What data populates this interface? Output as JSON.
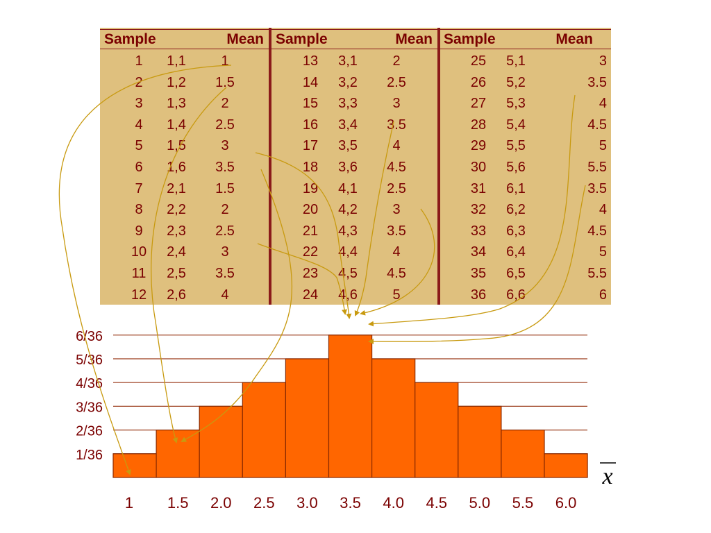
{
  "table": {
    "headers": [
      {
        "sample": "Sample",
        "mean": "Mean"
      },
      {
        "sample": "Sample",
        "mean": "Mean"
      },
      {
        "sample": "Sample",
        "mean": "Mean"
      }
    ],
    "panels": [
      [
        [
          "1",
          "1,1",
          "1"
        ],
        [
          "2",
          "1,2",
          "1.5"
        ],
        [
          "3",
          "1,3",
          "2"
        ],
        [
          "4",
          "1,4",
          "2.5"
        ],
        [
          "5",
          "1,5",
          "3"
        ],
        [
          "6",
          "1,6",
          "3.5"
        ],
        [
          "7",
          "2,1",
          "1.5"
        ],
        [
          "8",
          "2,2",
          "2"
        ],
        [
          "9",
          "2,3",
          "2.5"
        ],
        [
          "10",
          "2,4",
          "3"
        ],
        [
          "11",
          "2,5",
          "3.5"
        ],
        [
          "12",
          "2,6",
          "4"
        ]
      ],
      [
        [
          "13",
          "3,1",
          "2"
        ],
        [
          "14",
          "3,2",
          "2.5"
        ],
        [
          "15",
          "3,3",
          "3"
        ],
        [
          "16",
          "3,4",
          "3.5"
        ],
        [
          "17",
          "3,5",
          "4"
        ],
        [
          "18",
          "3,6",
          "4.5"
        ],
        [
          "19",
          "4,1",
          "2.5"
        ],
        [
          "20",
          "4,2",
          "3"
        ],
        [
          "21",
          "4,3",
          "3.5"
        ],
        [
          "22",
          "4,4",
          "4"
        ],
        [
          "23",
          "4,5",
          "4.5"
        ],
        [
          "24",
          "4,6",
          "5"
        ]
      ],
      [
        [
          "25",
          "5,1",
          "3"
        ],
        [
          "26",
          "5,2",
          "3.5"
        ],
        [
          "27",
          "5,3",
          "4"
        ],
        [
          "28",
          "5,4",
          "4.5"
        ],
        [
          "29",
          "5,5",
          "5"
        ],
        [
          "30",
          "5,6",
          "5.5"
        ],
        [
          "31",
          "6,1",
          "3.5"
        ],
        [
          "32",
          "6,2",
          "4"
        ],
        [
          "33",
          "6,3",
          "4.5"
        ],
        [
          "34",
          "6,4",
          "5"
        ],
        [
          "35",
          "6,5",
          "5.5"
        ],
        [
          "36",
          "6,6",
          "6"
        ]
      ]
    ]
  },
  "chart_data": {
    "type": "bar",
    "categories": [
      "1",
      "1.5",
      "2.0",
      "2.5",
      "3.0",
      "3.5",
      "4.0",
      "4.5",
      "5.0",
      "5.5",
      "6.0"
    ],
    "values": [
      1,
      2,
      3,
      4,
      5,
      6,
      5,
      4,
      3,
      2,
      1
    ],
    "y_tick_labels": [
      "1/36",
      "2/36",
      "3/36",
      "4/36",
      "5/36",
      "6/36"
    ],
    "xlabel": "x",
    "xlabel_overline": true,
    "ylim": [
      0,
      6
    ],
    "grid": true,
    "colors": {
      "bar": "#ff6600",
      "bar_edge": "#8a2a00",
      "grid": "#9a3a1a",
      "arrow": "#c89a10",
      "text": "#7a0000",
      "table_bg": "#dfc07e"
    }
  }
}
